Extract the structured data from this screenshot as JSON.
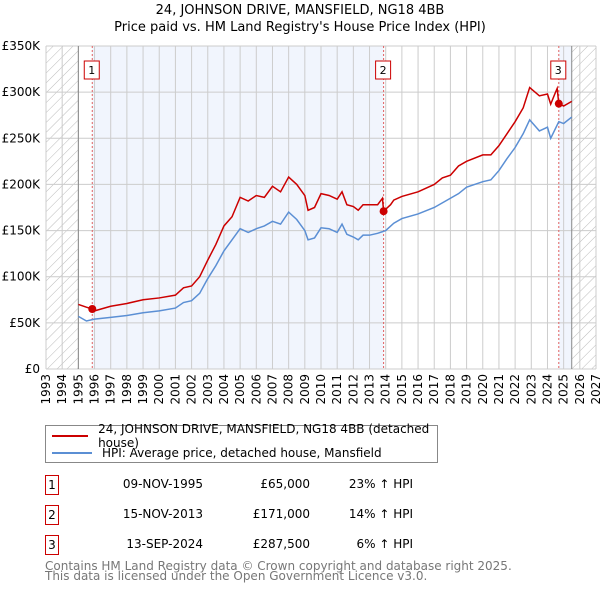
{
  "chart_data": {
    "type": "line",
    "title": "24, JOHNSON DRIVE, MANSFIELD, NG18 4BB",
    "subtitle": "Price paid vs. HM Land Registry's House Price Index (HPI)",
    "xlim": [
      1993,
      2027
    ],
    "ylim": [
      0,
      350000
    ],
    "x_ticks": [
      "1993",
      "1994",
      "1995",
      "1996",
      "1997",
      "1998",
      "1999",
      "2000",
      "2001",
      "2002",
      "2003",
      "2004",
      "2005",
      "2006",
      "2007",
      "2008",
      "2009",
      "2010",
      "2011",
      "2012",
      "2013",
      "2014",
      "2015",
      "2016",
      "2017",
      "2018",
      "2019",
      "2020",
      "2021",
      "2022",
      "2023",
      "2024",
      "2025",
      "2026",
      "2027"
    ],
    "y_ticks": [
      {
        "v": 0,
        "label": "£0"
      },
      {
        "v": 50000,
        "label": "£50K"
      },
      {
        "v": 100000,
        "label": "£100K"
      },
      {
        "v": 150000,
        "label": "£150K"
      },
      {
        "v": 200000,
        "label": "£200K"
      },
      {
        "v": 250000,
        "label": "£250K"
      },
      {
        "v": 300000,
        "label": "£300K"
      },
      {
        "v": 350000,
        "label": "£350K"
      }
    ],
    "grid": true,
    "data_range": [
      1995.0,
      2025.5
    ],
    "series": [
      {
        "name": "24, JOHNSON DRIVE, MANSFIELD, NG18 4BB (detached house)",
        "color": "#cc0000",
        "x": [
          1995,
          1995.5,
          1995.86,
          1996,
          1997,
          1998,
          1999,
          2000,
          2001,
          2001.5,
          2002,
          2002.5,
          2003,
          2003.5,
          2004,
          2004.5,
          2005,
          2005.5,
          2006,
          2006.5,
          2007,
          2007.5,
          2008,
          2008.5,
          2009,
          2009.2,
          2009.6,
          2010,
          2010.5,
          2011,
          2011.3,
          2011.6,
          2012,
          2012.3,
          2012.6,
          2013,
          2013.5,
          2013.8,
          2013.87,
          2014.3,
          2014.5,
          2015,
          2016,
          2017,
          2017.5,
          2018,
          2018.5,
          2019,
          2020,
          2020.5,
          2021,
          2021.5,
          2022,
          2022.5,
          2022.9,
          2023.5,
          2024,
          2024.2,
          2024.5,
          2024.6,
          2024.7,
          2025,
          2025.5
        ],
        "y": [
          70000,
          67000,
          65000,
          63000,
          68000,
          71000,
          75000,
          77000,
          80000,
          88000,
          90000,
          100000,
          118000,
          135000,
          155000,
          165000,
          186000,
          182000,
          188000,
          186000,
          198000,
          192000,
          208000,
          200000,
          188000,
          172000,
          175000,
          190000,
          188000,
          184000,
          192000,
          178000,
          176000,
          172000,
          178000,
          178000,
          178000,
          185000,
          171000,
          178000,
          183000,
          187000,
          192000,
          200000,
          207000,
          210000,
          220000,
          225000,
          232000,
          232000,
          242000,
          255000,
          268000,
          283000,
          305000,
          296000,
          298000,
          287000,
          300000,
          304000,
          287500,
          285000,
          290000
        ]
      },
      {
        "name": "HPI: Average price, detached house, Mansfield",
        "color": "#5b8fd4",
        "x": [
          1995,
          1995.5,
          1996,
          1997,
          1998,
          1999,
          2000,
          2001,
          2001.5,
          2002,
          2002.5,
          2003,
          2003.5,
          2004,
          2004.5,
          2005,
          2005.5,
          2006,
          2006.5,
          2007,
          2007.5,
          2008,
          2008.5,
          2009,
          2009.2,
          2009.6,
          2010,
          2010.5,
          2011,
          2011.3,
          2011.6,
          2012,
          2012.3,
          2012.6,
          2013,
          2013.5,
          2014,
          2014.5,
          2015,
          2016,
          2017,
          2017.5,
          2018,
          2018.5,
          2019,
          2020,
          2020.5,
          2021,
          2021.5,
          2022,
          2022.5,
          2022.9,
          2023.5,
          2024,
          2024.2,
          2024.7,
          2025,
          2025.5
        ],
        "y": [
          57000,
          52000,
          54000,
          56000,
          58000,
          61000,
          63000,
          66000,
          72000,
          74000,
          82000,
          98000,
          112000,
          128000,
          140000,
          152000,
          148000,
          152000,
          155000,
          160000,
          157000,
          170000,
          162000,
          150000,
          140000,
          142000,
          153000,
          152000,
          148000,
          157000,
          146000,
          143000,
          140000,
          145000,
          145000,
          147000,
          150000,
          158000,
          163000,
          168000,
          175000,
          180000,
          185000,
          190000,
          197000,
          203000,
          205000,
          215000,
          228000,
          240000,
          255000,
          270000,
          258000,
          262000,
          250000,
          268000,
          266000,
          273000
        ]
      }
    ],
    "sales": [
      {
        "id": "1",
        "x": 1995.86,
        "date": "09-NOV-1995",
        "price": 65000,
        "price_label": "£65,000",
        "hpi": "23% ↑ HPI"
      },
      {
        "id": "2",
        "x": 2013.87,
        "date": "15-NOV-2013",
        "price": 171000,
        "price_label": "£171,000",
        "hpi": "14% ↑ HPI"
      },
      {
        "id": "3",
        "x": 2024.7,
        "date": "13-SEP-2024",
        "price": 287500,
        "price_label": "£287,500",
        "hpi": "6% ↑ HPI"
      }
    ],
    "legend_position": "below"
  },
  "footer": {
    "line1": "Contains HM Land Registry data © Crown copyright and database right 2025.",
    "line2": "This data is licensed under the Open Government Licence v3.0."
  }
}
